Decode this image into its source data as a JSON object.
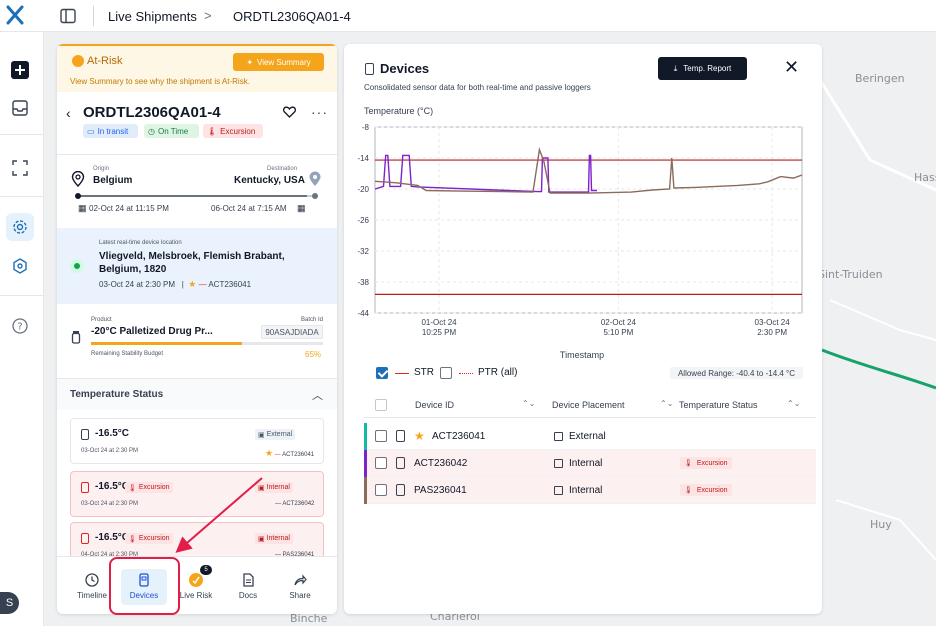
{
  "topbar": {
    "logo_icon": "brand-x-logo",
    "breadcrumb_1": "Live Shipments",
    "breadcrumb_sep": ">",
    "breadcrumb_2": "ORDTL2306QA01-4"
  },
  "map": {
    "labels": [
      "Beringen",
      "Hass",
      "Sint-Truiden",
      "Huy",
      "Charleroi",
      "Binche"
    ],
    "route_color": "#16a36a"
  },
  "rail": {
    "icons": [
      "plus-icon",
      "inbox-icon",
      "scan-icon",
      "gear-icon",
      "hexagon-icon",
      "help-icon"
    ],
    "avatar_initial": "S"
  },
  "shipment": {
    "risk_title": "At-Risk",
    "risk_subtitle": "View Summary to see why the shipment is At-Risk.",
    "view_summary": "View Summary",
    "order_id": "ORDTL2306QA01-4",
    "chips": {
      "transit": "In transit",
      "ontime": "On Time",
      "excursion": "Excursion"
    },
    "origin_label": "Origin",
    "origin": "Belgium",
    "destination_label": "Destination",
    "destination": "Kentucky, USA",
    "route_progress": 0.97,
    "depart": "02-Oct 24 at 11:15 PM",
    "arrive": "06-Oct 24 at 7:15 AM",
    "location_label": "Latest real-time device location",
    "location": "Vliegveld, Melsbroek, Flemish Brabant, Belgium, 1820",
    "location_time": "03-Oct 24 at 2:30 PM",
    "location_sep": "|",
    "location_device": "ACT236041",
    "product_label": "Product",
    "batch_label": "Batch Id",
    "product": "-20°C Palletized Drug Pr...",
    "batch": "90ASAJDIADA",
    "stability_label": "Remaining Stability Budget",
    "stability_value": "65%",
    "stability_fraction": 0.65,
    "temp_status_title": "Temperature Status",
    "temp_cards": [
      {
        "value": "-16.5°C",
        "time": "03-Oct 24 at 2:30 PM",
        "placement": "External",
        "device": "ACT236041",
        "excursion": ""
      },
      {
        "value": "-16.5°C",
        "time": "03-Oct 24 at 2:30 PM",
        "placement": "Internal",
        "device": "ACT236042",
        "excursion": "Excursion"
      },
      {
        "value": "-16.5°C",
        "time": "04-Oct 24 at 2:30 PM",
        "placement": "Internal",
        "device": "PAS236041",
        "excursion": "Excursion"
      }
    ],
    "nav": {
      "timeline": "Timeline",
      "devices": "Devices",
      "live_risk": "Live Risk",
      "live_risk_badge": "5",
      "docs": "Docs",
      "share": "Share"
    }
  },
  "devices": {
    "title": "Devices",
    "subtitle": "Consolidated sensor data for both real-time and passive loggers",
    "report_button": "Temp. Report",
    "y_title": "Temperature (°C)",
    "x_title": "Timestamp",
    "legend_str": "STR",
    "legend_ptr": "PTR (all)",
    "allowed_range": "Allowed Range: -40.4 to -14.4 °C",
    "table_headers": {
      "device_id": "Device ID",
      "placement": "Device Placement",
      "status": "Temperature Status"
    },
    "rows": [
      {
        "id": "ACT236041",
        "placement": "External",
        "status": "",
        "starred": true,
        "color": "#14b8a6"
      },
      {
        "id": "ACT236042",
        "placement": "Internal",
        "status": "Excursion",
        "starred": false,
        "color": "#7e22ce"
      },
      {
        "id": "PAS236041",
        "placement": "Internal",
        "status": "Excursion",
        "starred": false,
        "color": "#8b6b5a"
      }
    ]
  },
  "chart_data": {
    "type": "line",
    "ylabel": "Temperature (°C)",
    "xlabel": "Timestamp",
    "ylim": [
      -44,
      -8
    ],
    "yticks": [
      -8,
      -14,
      -20,
      -26,
      -32,
      -38,
      -44
    ],
    "xticks": [
      {
        "t": 0.15,
        "label": [
          "01-Oct 24",
          "10:25 PM"
        ]
      },
      {
        "t": 0.57,
        "label": [
          "02-Oct 24",
          "5:10 PM"
        ]
      },
      {
        "t": 0.93,
        "label": [
          "03-Oct 24",
          "2:30 PM"
        ]
      }
    ],
    "thresholds": [
      {
        "value": -14.4,
        "color": "#b91c1c"
      },
      {
        "value": -40.4,
        "color": "#b91c1c"
      }
    ],
    "series": [
      {
        "color": "#7e22ce",
        "points": [
          [
            0.0,
            -20
          ],
          [
            0.02,
            -19.5
          ],
          [
            0.025,
            -13.5
          ],
          [
            0.03,
            -13.5
          ],
          [
            0.035,
            -19.5
          ],
          [
            0.06,
            -19.5
          ],
          [
            0.065,
            -13.5
          ],
          [
            0.08,
            -13.5
          ],
          [
            0.085,
            -19.5
          ],
          [
            0.1,
            -19.6
          ],
          [
            0.38,
            -20.5
          ],
          [
            0.39,
            -20.5
          ],
          [
            0.392,
            -14
          ],
          [
            0.405,
            -14
          ],
          [
            0.407,
            -20.6
          ],
          [
            0.5,
            -20.6
          ],
          [
            0.502,
            -13.5
          ],
          [
            0.505,
            -13.5
          ],
          [
            0.507,
            -20.3
          ],
          [
            0.52,
            -20.3
          ]
        ]
      },
      {
        "color": "#8b6b5a",
        "points": [
          [
            0.0,
            -18.5
          ],
          [
            0.05,
            -18.8
          ],
          [
            0.1,
            -19.3
          ],
          [
            0.12,
            -20.3
          ],
          [
            0.2,
            -20.4
          ],
          [
            0.3,
            -20.5
          ],
          [
            0.37,
            -20.6
          ],
          [
            0.385,
            -12.4
          ],
          [
            0.395,
            -14.5
          ],
          [
            0.41,
            -20.8
          ],
          [
            0.5,
            -20.8
          ],
          [
            0.55,
            -20.7
          ],
          [
            0.6,
            -20.6
          ],
          [
            0.65,
            -20.2
          ],
          [
            0.69,
            -20
          ],
          [
            0.695,
            -14
          ],
          [
            0.7,
            -19.8
          ],
          [
            0.75,
            -19.7
          ],
          [
            0.8,
            -19.5
          ],
          [
            0.85,
            -19.3
          ],
          [
            0.9,
            -19
          ],
          [
            0.92,
            -18.6
          ],
          [
            0.95,
            -17.6
          ],
          [
            0.98,
            -17.9
          ],
          [
            1.0,
            -17.3
          ]
        ]
      }
    ]
  }
}
